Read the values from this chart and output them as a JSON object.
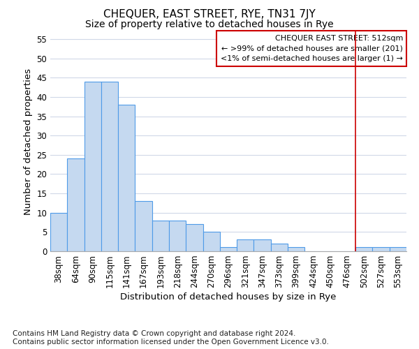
{
  "title": "CHEQUER, EAST STREET, RYE, TN31 7JY",
  "subtitle": "Size of property relative to detached houses in Rye",
  "xlabel": "Distribution of detached houses by size in Rye",
  "ylabel": "Number of detached properties",
  "categories": [
    "38sqm",
    "64sqm",
    "90sqm",
    "115sqm",
    "141sqm",
    "167sqm",
    "193sqm",
    "218sqm",
    "244sqm",
    "270sqm",
    "296sqm",
    "321sqm",
    "347sqm",
    "373sqm",
    "399sqm",
    "424sqm",
    "450sqm",
    "476sqm",
    "502sqm",
    "527sqm",
    "553sqm"
  ],
  "values": [
    10,
    24,
    44,
    44,
    38,
    13,
    8,
    8,
    7,
    5,
    1,
    3,
    3,
    2,
    1,
    0,
    0,
    0,
    1,
    1,
    1
  ],
  "bar_color": "#c5d9f0",
  "bar_edge_color": "#4f9be8",
  "ylim": [
    0,
    57
  ],
  "yticks": [
    0,
    5,
    10,
    15,
    20,
    25,
    30,
    35,
    40,
    45,
    50,
    55
  ],
  "vline_x_pos": 17.5,
  "vline_color": "#cc0000",
  "legend_text_line1": "CHEQUER EAST STREET: 512sqm",
  "legend_text_line2": "← >99% of detached houses are smaller (201)",
  "legend_text_line3": "<1% of semi-detached houses are larger (1) →",
  "legend_box_color": "#cc0000",
  "footer_line1": "Contains HM Land Registry data © Crown copyright and database right 2024.",
  "footer_line2": "Contains public sector information licensed under the Open Government Licence v3.0.",
  "background_color": "#ffffff",
  "grid_color": "#d0d8e8",
  "title_fontsize": 11,
  "subtitle_fontsize": 10,
  "axis_label_fontsize": 9.5,
  "tick_fontsize": 8.5,
  "legend_fontsize": 8,
  "footer_fontsize": 7.5
}
